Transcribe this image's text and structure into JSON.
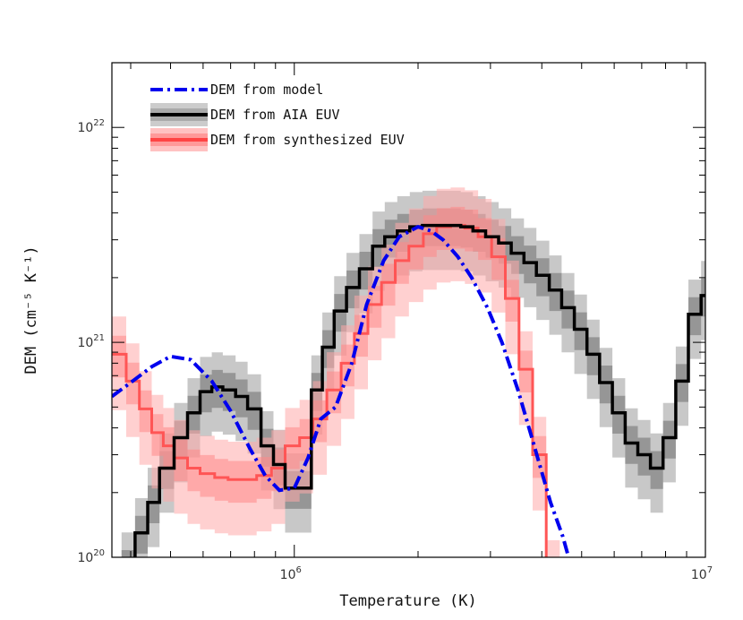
{
  "chart_data": {
    "type": "line",
    "xlabel": "Temperature (K)",
    "ylabel": "DEM (cm⁻⁵ K⁻¹)",
    "x_scale": "log",
    "y_scale": "log",
    "xlim": [
      360000,
      10000000
    ],
    "ylim": [
      1e+20,
      2e+22
    ],
    "x_tick_labels": [
      {
        "value": 1000000,
        "mantissa": "10",
        "exp": "6"
      },
      {
        "value": 10000000,
        "mantissa": "10",
        "exp": "7"
      }
    ],
    "y_tick_labels": [
      {
        "value": 1e+20,
        "mantissa": "10",
        "exp": "20"
      },
      {
        "value": 1e+21,
        "mantissa": "10",
        "exp": "21"
      },
      {
        "value": 1e+22,
        "mantissa": "10",
        "exp": "22"
      }
    ],
    "legend": {
      "position": "top-left",
      "entries": [
        {
          "label": "DEM from model",
          "color": "#0000ee",
          "style": "dash-dot"
        },
        {
          "label": "DEM from AIA EUV",
          "color": "#000000",
          "band": "#aaaaaa",
          "style": "step"
        },
        {
          "label": "DEM from synthesized EUV",
          "color": "#ff4444",
          "band": "#ff9999",
          "style": "step"
        }
      ]
    },
    "series": [
      {
        "name": "DEM from model",
        "color": "#0000ee",
        "style": "dash-dot",
        "x": [
          360000,
          400000,
          450000,
          500000,
          560000,
          630000,
          700000,
          780000,
          850000,
          920000,
          1000000,
          1080000,
          1160000,
          1260000,
          1380000,
          1500000,
          1650000,
          1800000,
          2000000,
          2150000,
          2300000,
          2500000,
          2700000,
          2950000,
          3200000,
          3500000,
          3800000,
          4200000,
          4500000,
          4800000
        ],
        "values": [
          5.6e+20,
          6.5e+20,
          7.7e+20,
          8.6e+20,
          8.3e+20,
          6.6e+20,
          4.8e+20,
          3.2e+20,
          2.4e+20,
          2.05e+20,
          2.1e+20,
          2.9e+20,
          4.4e+20,
          5e+20,
          8e+20,
          1.5e+21,
          2.4e+21,
          3.1e+21,
          3.45e+21,
          3.3e+21,
          3e+21,
          2.5e+21,
          2e+21,
          1.45e+21,
          1e+21,
          6e+20,
          3.5e+20,
          1.8e+20,
          1.25e+20,
          8e+19
        ]
      },
      {
        "name": "DEM from AIA EUV",
        "color": "#000000",
        "style": "step",
        "x": [
          380000,
          410000,
          440000,
          470000,
          510000,
          550000,
          590000,
          630000,
          670000,
          720000,
          770000,
          830000,
          890000,
          950000,
          1020000,
          1100000,
          1170000,
          1250000,
          1340000,
          1440000,
          1550000,
          1660000,
          1780000,
          1910000,
          2050000,
          2200000,
          2360000,
          2540000,
          2720000,
          2920000,
          3140000,
          3370000,
          3620000,
          3880000,
          4170000,
          4470000,
          4800000,
          5150000,
          5530000,
          5940000,
          6380000,
          6850000,
          7350000,
          7890000,
          8470000,
          9090000,
          9760000
        ],
        "values": [
          9e+19,
          1.3e+20,
          1.8e+20,
          2.6e+20,
          3.6e+20,
          4.7e+20,
          5.9e+20,
          6.2e+20,
          6e+20,
          5.6e+20,
          4.9e+20,
          3.3e+20,
          2.7e+20,
          2.1e+20,
          2.1e+20,
          6e+20,
          9.5e+20,
          1.4e+21,
          1.8e+21,
          2.2e+21,
          2.8e+21,
          3.1e+21,
          3.3e+21,
          3.45e+21,
          3.5e+21,
          3.5e+21,
          3.5e+21,
          3.45e+21,
          3.3e+21,
          3.1e+21,
          2.9e+21,
          2.6e+21,
          2.35e+21,
          2.05e+21,
          1.75e+21,
          1.45e+21,
          1.15e+21,
          8.8e+20,
          6.5e+20,
          4.7e+20,
          3.4e+20,
          3e+20,
          2.6e+20,
          3.6e+20,
          6.6e+20,
          1.35e+21,
          1.65e+21
        ]
      },
      {
        "name": "DEM from synthesized EUV",
        "color": "#ff4444",
        "style": "step",
        "x": [
          360000,
          390000,
          420000,
          450000,
          480000,
          510000,
          550000,
          590000,
          640000,
          690000,
          750000,
          810000,
          880000,
          950000,
          1030000,
          1110000,
          1200000,
          1300000,
          1400000,
          1510000,
          1630000,
          1760000,
          1900000,
          2060000,
          2220000,
          2400000,
          2600000,
          2800000,
          3020000,
          3260000,
          3520000,
          3800000,
          4100000
        ],
        "values": [
          8.8e+20,
          6.6e+20,
          4.9e+20,
          3.8e+20,
          3.3e+20,
          2.9e+20,
          2.6e+20,
          2.45e+20,
          2.35e+20,
          2.3e+20,
          2.3e+20,
          2.4e+20,
          2.6e+20,
          3.3e+20,
          3.6e+20,
          4.4e+20,
          6e+20,
          8e+20,
          1.1e+21,
          1.5e+21,
          1.9e+21,
          2.4e+21,
          2.8e+21,
          3.2e+21,
          3.45e+21,
          3.5e+21,
          3.4e+21,
          3.1e+21,
          2.5e+21,
          1.6e+21,
          7.5e+20,
          3e+20,
          8e+19
        ]
      }
    ]
  }
}
